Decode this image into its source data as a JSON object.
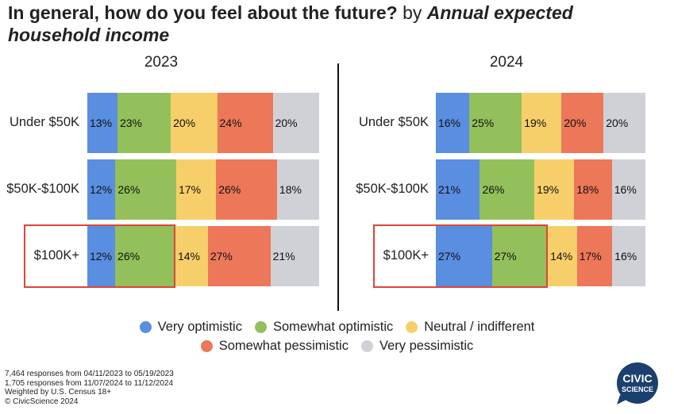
{
  "title": {
    "main": "In general, how do you feel about the future?",
    "by": " by ",
    "dimension_line1": "Annual expected",
    "dimension_line2": "household income"
  },
  "chart_data": {
    "type": "bar",
    "stacked": true,
    "orientation": "horizontal",
    "categories": [
      "Under $50K",
      "$50K-$100K",
      "$100K+"
    ],
    "series_names": [
      "Very optimistic",
      "Somewhat optimistic",
      "Neutral / indifferent",
      "Somewhat pessimistic",
      "Very pessimistic"
    ],
    "colors": [
      "#5a8ee0",
      "#93c05a",
      "#f7cf6a",
      "#ec7759",
      "#cfd1d6"
    ],
    "unit": "%",
    "highlight_category": "$100K+",
    "panels": [
      {
        "title": "2023",
        "values": [
          [
            13,
            23,
            20,
            24,
            20
          ],
          [
            12,
            26,
            17,
            26,
            18
          ],
          [
            12,
            26,
            14,
            27,
            21
          ]
        ],
        "highlight_series_count": 2
      },
      {
        "title": "2024",
        "values": [
          [
            16,
            25,
            19,
            20,
            20
          ],
          [
            21,
            26,
            19,
            18,
            16
          ],
          [
            27,
            27,
            14,
            17,
            16
          ]
        ],
        "highlight_series_count": 2
      }
    ]
  },
  "footnotes": [
    "7,464 responses from 04/11/2023 to 05/19/2023",
    "1,705 responses from 11/07/2024 to 11/12/2024",
    "Weighted by U.S. Census 18+",
    "© CivicScience 2024"
  ],
  "logo": {
    "line1": "CIVIC",
    "line2": "SCIENCE",
    "color": "#1b3f6e"
  }
}
